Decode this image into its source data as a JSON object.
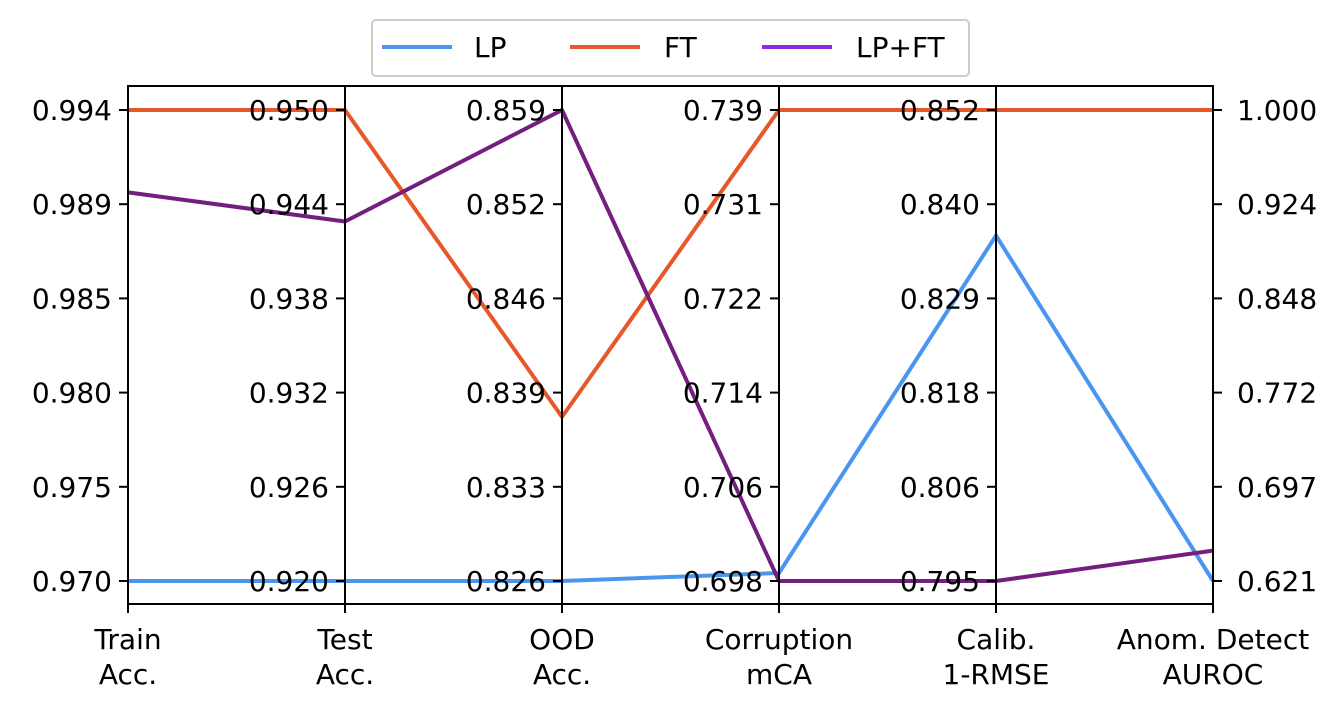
{
  "chart_data": {
    "type": "line",
    "title": "",
    "axes": [
      {
        "name": "Train Acc.",
        "label_lines": [
          "Train",
          "Acc."
        ],
        "ticks": [
          "0.994",
          "0.989",
          "0.985",
          "0.980",
          "0.975",
          "0.970"
        ],
        "range": [
          0.97,
          0.994
        ]
      },
      {
        "name": "Test Acc.",
        "label_lines": [
          "Test",
          "Acc."
        ],
        "ticks": [
          "0.950",
          "0.944",
          "0.938",
          "0.932",
          "0.926",
          "0.920"
        ],
        "range": [
          0.92,
          0.95
        ]
      },
      {
        "name": "OOD Acc.",
        "label_lines": [
          "OOD",
          "Acc."
        ],
        "ticks": [
          "0.859",
          "0.852",
          "0.846",
          "0.839",
          "0.833",
          "0.826"
        ],
        "range": [
          0.826,
          0.859
        ]
      },
      {
        "name": "Corruption mCA",
        "label_lines": [
          "Corruption",
          "mCA"
        ],
        "ticks": [
          "0.739",
          "0.731",
          "0.722",
          "0.714",
          "0.706",
          "0.698"
        ],
        "range": [
          0.698,
          0.739
        ]
      },
      {
        "name": "Calib. 1-RMSE",
        "label_lines": [
          "Calib.",
          "1-RMSE"
        ],
        "ticks": [
          "0.852",
          "0.840",
          "0.829",
          "0.818",
          "0.806",
          "0.795"
        ],
        "range": [
          0.795,
          0.852
        ]
      },
      {
        "name": "Anom. Detect AUROC",
        "label_lines": [
          "Anom. Detect",
          "AUROC"
        ],
        "ticks": [
          "1.000",
          "0.924",
          "0.848",
          "0.772",
          "0.697",
          "0.621"
        ],
        "range": [
          0.621,
          1.0
        ]
      }
    ],
    "series": [
      {
        "name": "LP",
        "color": "#4a95ef",
        "values": [
          0.97,
          0.92,
          0.826,
          0.6987,
          0.8368,
          0.621
        ]
      },
      {
        "name": "FT",
        "color": "#e6582a",
        "values": [
          0.994,
          0.95,
          0.8375,
          0.739,
          0.852,
          1.0
        ]
      },
      {
        "name": "LP+FT",
        "color": "#741f7f",
        "values": [
          0.9898,
          0.9429,
          0.859,
          0.698,
          0.795,
          0.6455
        ]
      }
    ],
    "legend": {
      "placement": "top-center",
      "items": [
        "LP",
        "FT",
        "LP+FT"
      ]
    },
    "legend_line_color": "#8b2be2",
    "grid": false
  }
}
